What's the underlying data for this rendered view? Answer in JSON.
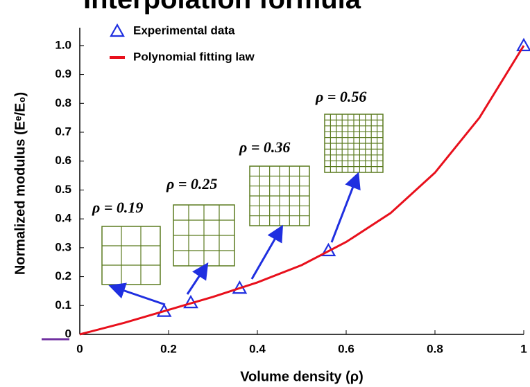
{
  "slide_title": "Interpolation formula",
  "chart_data": {
    "type": "scatter",
    "x_label": "Volume density (ρ)",
    "y_label": "Normalized modulus (Eᵉ/E₀)",
    "xlim": [
      0,
      1
    ],
    "ylim": [
      0,
      1.05
    ],
    "xticks": [
      0,
      0.2,
      0.4,
      0.6,
      0.8,
      1
    ],
    "yticks": [
      0,
      0.1,
      0.2,
      0.3,
      0.4,
      0.5,
      0.6,
      0.7,
      0.8,
      0.9,
      {
        "value": 1,
        "label": "1.0"
      }
    ],
    "legend": "upper left",
    "series": [
      {
        "name": "Experimental data",
        "type": "scatter",
        "color": "#1f2fe0",
        "x": [
          0.19,
          0.25,
          0.36,
          0.56,
          1
        ],
        "values": [
          0.08,
          0.11,
          0.16,
          0.29,
          1
        ]
      },
      {
        "name": "Polynomial fitting law",
        "type": "line",
        "color": "#e8101c",
        "x": [
          0,
          0.1,
          0.2,
          0.3,
          0.4,
          0.5,
          0.6,
          0.7,
          0.8,
          0.9,
          1
        ],
        "values": [
          0,
          0.04,
          0.085,
          0.13,
          0.18,
          0.24,
          0.32,
          0.42,
          0.56,
          0.75,
          1
        ]
      }
    ],
    "annotations": [
      {
        "text": "ρ = 0.19"
      },
      {
        "text": "ρ = 0.25"
      },
      {
        "text": "ρ = 0.36"
      },
      {
        "text": "ρ = 0.56"
      }
    ]
  }
}
